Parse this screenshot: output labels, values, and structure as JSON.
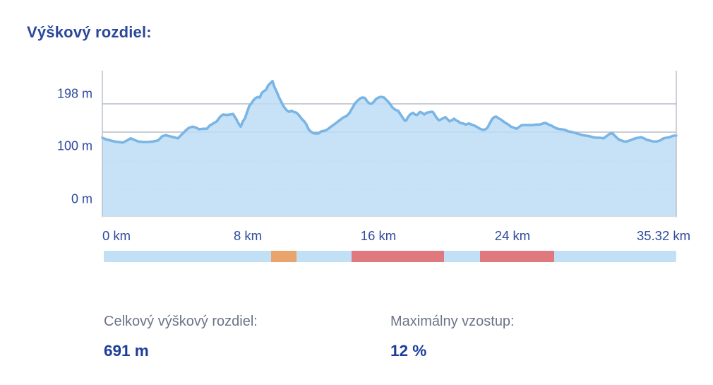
{
  "title": "Výškový rozdiel:",
  "chart_data": {
    "type": "area",
    "title": "Výškový rozdiel:",
    "x_unit": "km",
    "y_unit": "m",
    "xlim": [
      0,
      35.32
    ],
    "ylim": [
      0,
      230
    ],
    "grid": true,
    "x_ticks": [
      "0 km",
      "8 km",
      "16 km",
      "24 km",
      "35.32 km"
    ],
    "x_ticks_values": [
      0,
      8,
      16,
      24,
      35.32
    ],
    "y_ticks": [
      "198 m",
      "100 m",
      "0 m"
    ],
    "y_ticks_values": [
      198,
      100,
      0
    ],
    "series_name": "elevation-profile",
    "profile": [
      [
        0,
        116
      ],
      [
        0.22,
        113
      ],
      [
        0.48,
        111
      ],
      [
        0.74,
        109
      ],
      [
        1.0,
        108
      ],
      [
        1.26,
        107
      ],
      [
        1.52,
        111
      ],
      [
        1.74,
        115
      ],
      [
        1.96,
        112
      ],
      [
        2.22,
        109
      ],
      [
        2.52,
        108
      ],
      [
        2.82,
        108
      ],
      [
        3.13,
        109
      ],
      [
        3.43,
        111
      ],
      [
        3.69,
        119
      ],
      [
        3.91,
        121
      ],
      [
        4.13,
        119
      ],
      [
        4.39,
        117
      ],
      [
        4.65,
        115
      ],
      [
        4.91,
        123
      ],
      [
        5.17,
        131
      ],
      [
        5.34,
        135
      ],
      [
        5.56,
        137
      ],
      [
        5.78,
        135
      ],
      [
        5.95,
        132
      ],
      [
        6.21,
        133
      ],
      [
        6.43,
        133
      ],
      [
        6.6,
        139
      ],
      [
        6.82,
        143
      ],
      [
        7.04,
        147
      ],
      [
        7.26,
        156
      ],
      [
        7.43,
        160
      ],
      [
        7.65,
        159
      ],
      [
        7.86,
        160
      ],
      [
        8.04,
        161
      ],
      [
        8.21,
        153
      ],
      [
        8.38,
        143
      ],
      [
        8.51,
        137
      ],
      [
        8.65,
        147
      ],
      [
        8.78,
        153
      ],
      [
        8.91,
        165
      ],
      [
        9.04,
        176
      ],
      [
        9.17,
        181
      ],
      [
        9.3,
        187
      ],
      [
        9.43,
        191
      ],
      [
        9.56,
        193
      ],
      [
        9.69,
        192
      ],
      [
        9.82,
        201
      ],
      [
        9.95,
        204
      ],
      [
        10.08,
        207
      ],
      [
        10.21,
        215
      ],
      [
        10.34,
        219
      ],
      [
        10.47,
        223
      ],
      [
        10.6,
        211
      ],
      [
        10.73,
        203
      ],
      [
        10.86,
        193
      ],
      [
        10.99,
        185
      ],
      [
        11.12,
        177
      ],
      [
        11.25,
        171
      ],
      [
        11.38,
        167
      ],
      [
        11.51,
        165
      ],
      [
        11.64,
        167
      ],
      [
        11.77,
        165
      ],
      [
        11.9,
        164
      ],
      [
        12.03,
        161
      ],
      [
        12.16,
        156
      ],
      [
        12.29,
        151
      ],
      [
        12.42,
        147
      ],
      [
        12.56,
        141
      ],
      [
        12.69,
        132
      ],
      [
        12.82,
        128
      ],
      [
        12.95,
        125
      ],
      [
        13.12,
        124
      ],
      [
        13.29,
        124
      ],
      [
        13.47,
        128
      ],
      [
        13.64,
        129
      ],
      [
        13.81,
        131
      ],
      [
        13.99,
        135
      ],
      [
        14.16,
        139
      ],
      [
        14.34,
        143
      ],
      [
        14.51,
        147
      ],
      [
        14.68,
        151
      ],
      [
        14.86,
        155
      ],
      [
        15.03,
        157
      ],
      [
        15.21,
        163
      ],
      [
        15.38,
        172
      ],
      [
        15.55,
        181
      ],
      [
        15.73,
        187
      ],
      [
        15.9,
        191
      ],
      [
        16.03,
        192
      ],
      [
        16.16,
        191
      ],
      [
        16.29,
        185
      ],
      [
        16.42,
        181
      ],
      [
        16.55,
        180
      ],
      [
        16.68,
        183
      ],
      [
        16.81,
        188
      ],
      [
        16.94,
        191
      ],
      [
        17.07,
        193
      ],
      [
        17.2,
        193
      ],
      [
        17.33,
        192
      ],
      [
        17.46,
        188
      ],
      [
        17.59,
        184
      ],
      [
        17.72,
        179
      ],
      [
        17.86,
        173
      ],
      [
        18.03,
        169
      ],
      [
        18.2,
        167
      ],
      [
        18.33,
        161
      ],
      [
        18.46,
        155
      ],
      [
        18.59,
        149
      ],
      [
        18.68,
        148
      ],
      [
        18.81,
        155
      ],
      [
        18.94,
        160
      ],
      [
        19.11,
        163
      ],
      [
        19.24,
        160
      ],
      [
        19.37,
        159
      ],
      [
        19.55,
        165
      ],
      [
        19.68,
        163
      ],
      [
        19.81,
        160
      ],
      [
        19.94,
        163
      ],
      [
        20.07,
        164
      ],
      [
        20.2,
        165
      ],
      [
        20.33,
        165
      ],
      [
        20.46,
        159
      ],
      [
        20.59,
        153
      ],
      [
        20.72,
        149
      ],
      [
        20.85,
        151
      ],
      [
        20.98,
        153
      ],
      [
        21.11,
        155
      ],
      [
        21.24,
        151
      ],
      [
        21.37,
        147
      ],
      [
        21.51,
        149
      ],
      [
        21.64,
        152
      ],
      [
        21.77,
        149
      ],
      [
        21.9,
        147
      ],
      [
        22.03,
        144
      ],
      [
        22.2,
        143
      ],
      [
        22.37,
        141
      ],
      [
        22.55,
        143
      ],
      [
        22.72,
        141
      ],
      [
        22.9,
        139
      ],
      [
        23.07,
        136
      ],
      [
        23.24,
        133
      ],
      [
        23.42,
        131
      ],
      [
        23.59,
        132
      ],
      [
        23.72,
        136
      ],
      [
        23.85,
        144
      ],
      [
        23.98,
        151
      ],
      [
        24.11,
        155
      ],
      [
        24.24,
        156
      ],
      [
        24.37,
        153
      ],
      [
        24.5,
        151
      ],
      [
        24.63,
        148
      ],
      [
        24.81,
        144
      ],
      [
        24.98,
        141
      ],
      [
        25.15,
        137
      ],
      [
        25.33,
        135
      ],
      [
        25.5,
        133
      ],
      [
        25.63,
        136
      ],
      [
        25.76,
        139
      ],
      [
        25.89,
        140
      ],
      [
        26.07,
        140
      ],
      [
        26.28,
        140
      ],
      [
        26.5,
        140
      ],
      [
        26.72,
        141
      ],
      [
        26.93,
        141
      ],
      [
        27.11,
        143
      ],
      [
        27.28,
        144
      ],
      [
        27.46,
        141
      ],
      [
        27.63,
        139
      ],
      [
        27.8,
        136
      ],
      [
        28.02,
        133
      ],
      [
        28.24,
        132
      ],
      [
        28.46,
        131
      ],
      [
        28.67,
        128
      ],
      [
        28.89,
        127
      ],
      [
        29.11,
        125
      ],
      [
        29.33,
        123
      ],
      [
        29.54,
        121
      ],
      [
        29.76,
        120
      ],
      [
        29.98,
        119
      ],
      [
        30.2,
        117
      ],
      [
        30.41,
        116
      ],
      [
        30.63,
        116
      ],
      [
        30.85,
        115
      ],
      [
        31.02,
        119
      ],
      [
        31.2,
        123
      ],
      [
        31.37,
        125
      ],
      [
        31.5,
        121
      ],
      [
        31.63,
        117
      ],
      [
        31.81,
        112
      ],
      [
        31.94,
        111
      ],
      [
        32.11,
        109
      ],
      [
        32.28,
        109
      ],
      [
        32.46,
        111
      ],
      [
        32.63,
        113
      ],
      [
        32.8,
        115
      ],
      [
        32.98,
        116
      ],
      [
        33.15,
        117
      ],
      [
        33.33,
        115
      ],
      [
        33.5,
        112
      ],
      [
        33.67,
        111
      ],
      [
        33.89,
        109
      ],
      [
        34.11,
        109
      ],
      [
        34.33,
        111
      ],
      [
        34.54,
        115
      ],
      [
        34.72,
        116
      ],
      [
        34.89,
        117
      ],
      [
        35.06,
        119
      ],
      [
        35.19,
        120
      ],
      [
        35.32,
        120
      ]
    ],
    "surface_segments": [
      {
        "from_km": 0.0,
        "to_km": 10.3,
        "color": "blue"
      },
      {
        "from_km": 10.3,
        "to_km": 11.9,
        "color": "orange"
      },
      {
        "from_km": 11.9,
        "to_km": 15.3,
        "color": "blue"
      },
      {
        "from_km": 15.3,
        "to_km": 21.0,
        "color": "red"
      },
      {
        "from_km": 21.0,
        "to_km": 23.2,
        "color": "blue"
      },
      {
        "from_km": 23.2,
        "to_km": 27.8,
        "color": "red"
      },
      {
        "from_km": 27.8,
        "to_km": 35.32,
        "color": "blue"
      }
    ]
  },
  "colors": {
    "accent_blue": "#2A479B",
    "line": "#79B5E5",
    "fill": "#C7E2F6",
    "strip_blue": "#C2E0F5",
    "strip_orange": "#E9A46E",
    "strip_red": "#E0797E",
    "stat_label_gray": "#6B7487",
    "stat_value_blue": "#1D3C9B"
  },
  "stats": [
    {
      "label": "Celkový výškový rozdiel:",
      "value": "691 m"
    },
    {
      "label": "Maximálny vzostup:",
      "value": "12 %"
    }
  ]
}
